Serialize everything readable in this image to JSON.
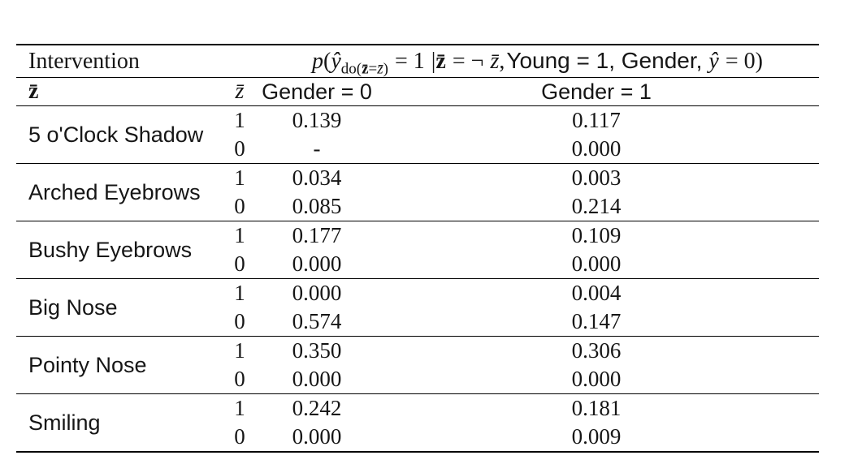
{
  "page": {
    "background": "#ffffff",
    "text_color": "#161616",
    "rule_color": "#000000"
  },
  "table": {
    "header": {
      "intervention_label": "Intervention",
      "math": {
        "p": "p",
        "open_paren": "(",
        "y_hat": "ŷ",
        "sub_do_open": "do(",
        "sub_z_bar_bold": "z̄",
        "sub_equals": "=",
        "sub_z_bar_italic": "z̄",
        "sub_close": ")",
        "equals_one": "= 1",
        "vert_bar": "|",
        "z_bar_bold": "z̄",
        "equals_not": "= ¬",
        "z_bar_italic": "z̄",
        "comma": ",",
        "condition_sans": "Young = 1, Gender,",
        "y_hat_2": "ŷ",
        "equals_zero": "= 0",
        "close_paren": ")"
      },
      "col_z_bar_bold": "z̄",
      "col_z_bar_italic": "z̄",
      "col_gender0": "Gender = 0",
      "col_gender1": "Gender = 1"
    },
    "rows": [
      {
        "intervention": "5 o'Clock Shadow",
        "entries": [
          {
            "z": "1",
            "g0": "0.139",
            "g1": "0.117"
          },
          {
            "z": "0",
            "g0": "-",
            "g1": "0.000"
          }
        ]
      },
      {
        "intervention": "Arched Eyebrows",
        "entries": [
          {
            "z": "1",
            "g0": "0.034",
            "g1": "0.003"
          },
          {
            "z": "0",
            "g0": "0.085",
            "g1": "0.214"
          }
        ]
      },
      {
        "intervention": "Bushy Eyebrows",
        "entries": [
          {
            "z": "1",
            "g0": "0.177",
            "g1": "0.109"
          },
          {
            "z": "0",
            "g0": "0.000",
            "g1": "0.000"
          }
        ]
      },
      {
        "intervention": "Big Nose",
        "entries": [
          {
            "z": "1",
            "g0": "0.000",
            "g1": "0.004"
          },
          {
            "z": "0",
            "g0": "0.574",
            "g1": "0.147"
          }
        ]
      },
      {
        "intervention": "Pointy Nose",
        "entries": [
          {
            "z": "1",
            "g0": "0.350",
            "g1": "0.306"
          },
          {
            "z": "0",
            "g0": "0.000",
            "g1": "0.000"
          }
        ]
      },
      {
        "intervention": "Smiling",
        "entries": [
          {
            "z": "1",
            "g0": "0.242",
            "g1": "0.181"
          },
          {
            "z": "0",
            "g0": "0.000",
            "g1": "0.009"
          }
        ]
      }
    ]
  }
}
